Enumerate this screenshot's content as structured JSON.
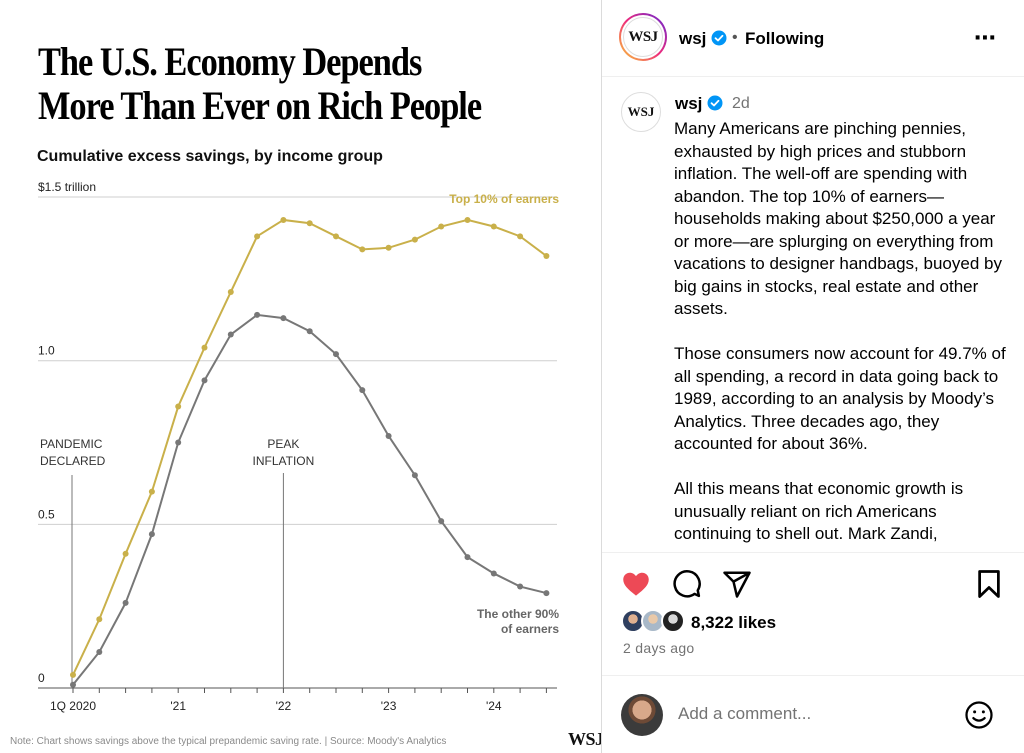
{
  "chart": {
    "headline_line1": "The U.S. Economy Depends",
    "headline_line2": "More Than Ever on Rich People",
    "subhead": "Cumulative excess savings, by income group",
    "note": "Note: Chart shows savings above the typical prepandemic saving rate. | Source: Moody's Analytics",
    "brand": "WSJ"
  },
  "chart_data": {
    "type": "line",
    "title": "Cumulative excess savings, by income group",
    "ylabel": "trillion dollars",
    "ylim": [
      0,
      1.5
    ],
    "y_ticks": [
      {
        "value": 0,
        "label": "0"
      },
      {
        "value": 0.5,
        "label": "0.5"
      },
      {
        "value": 1.0,
        "label": "1.0"
      },
      {
        "value": 1.5,
        "label": "$1.5 trillion"
      }
    ],
    "x_ticks": [
      {
        "index": 0,
        "label": "1Q 2020"
      },
      {
        "index": 4,
        "label": "'21"
      },
      {
        "index": 8,
        "label": "'22"
      },
      {
        "index": 12,
        "label": "'23"
      },
      {
        "index": 16,
        "label": "'24"
      }
    ],
    "x_count": 19,
    "series": [
      {
        "name": "Top 10% of earners",
        "color": "#c9b04a",
        "values": [
          0.04,
          0.21,
          0.41,
          0.6,
          0.86,
          1.04,
          1.21,
          1.38,
          1.43,
          1.42,
          1.38,
          1.34,
          1.345,
          1.37,
          1.41,
          1.43,
          1.41,
          1.38,
          1.32
        ]
      },
      {
        "name": "The other 90% of earners",
        "color": "#777777",
        "values": [
          0.01,
          0.11,
          0.26,
          0.47,
          0.75,
          0.94,
          1.08,
          1.14,
          1.13,
          1.09,
          1.02,
          0.91,
          0.77,
          0.65,
          0.51,
          0.4,
          0.35,
          0.31,
          0.29
        ]
      }
    ],
    "series_labels": {
      "top_label": "Top 10% of earners",
      "other_line1": "The other 90%",
      "other_line2": "of earners"
    },
    "annotations": [
      {
        "index": 0,
        "line1": "PANDEMIC",
        "line2": "DECLARED"
      },
      {
        "index": 8,
        "line1": "PEAK",
        "line2": "INFLATION"
      }
    ]
  },
  "post": {
    "account": "wsj",
    "follow_status": "Following",
    "separator": "•",
    "more_icon": "⋯",
    "logo_text": "WSJ",
    "caption_time": "2d",
    "caption_paragraphs": [
      "Many Americans are pinching pennies, exhausted by high prices and stubborn inflation. The well-off are spending with abandon. The top 10% of earners—households making about $250,000 a year or more—are splurging on everything from vacations to designer handbags, buoyed by big gains in stocks, real estate and other assets.",
      "Those consumers now account for 49.7% of all spending, a record in data going back to 1989, according to an analysis by Moody’s Analytics. Three decades ago, they accounted for about 36%.",
      "All this means that economic growth is unusually reliant on rich Americans continuing to shell out. Mark Zandi,"
    ],
    "likes": "8,322 likes",
    "age": "2 days ago",
    "comment_placeholder": "Add a comment...",
    "colors": {
      "like_red": "#ed4956",
      "verified_blue": "#0095f6"
    }
  }
}
